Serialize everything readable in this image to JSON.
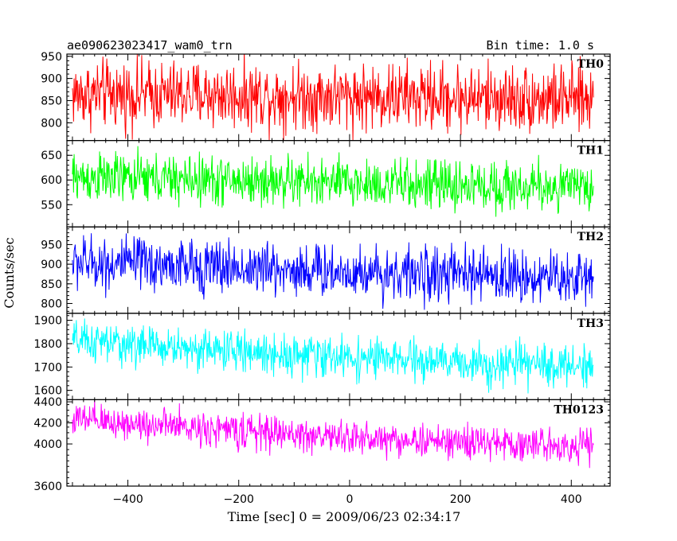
{
  "chart_data": {
    "type": "line",
    "title": "ae090623023417_wam0_trn",
    "subtitle": "Bin time: 1.0 s",
    "xlabel": "Time [sec] 0 = 2009/06/23 02:34:17",
    "ylabel": "Counts/sec",
    "xlim": [
      -510,
      470
    ],
    "x_range": [
      -500,
      440
    ],
    "bin_time_s": 1.0,
    "xticks": [
      -400,
      -200,
      0,
      200,
      400
    ],
    "grid": false,
    "legend": "none (panel labels at top-right of each panel)",
    "panels": [
      {
        "name": "TH0",
        "color": "#ff0000",
        "ylim": [
          760,
          955
        ],
        "yticks": [
          800,
          850,
          900,
          950
        ],
        "values": [
          865,
          864,
          863,
          862,
          861,
          860,
          858,
          856,
          855,
          852
        ],
        "noise": 42
      },
      {
        "name": "TH1",
        "color": "#00ff00",
        "ylim": [
          505,
          680
        ],
        "yticks": [
          550,
          600,
          650
        ],
        "values": [
          605,
          603,
          600,
          598,
          596,
          593,
          590,
          588,
          586,
          585
        ],
        "noise": 28
      },
      {
        "name": "TH2",
        "color": "#0000ff",
        "ylim": [
          775,
          995
        ],
        "yticks": [
          800,
          850,
          900,
          950
        ],
        "values": [
          905,
          900,
          895,
          890,
          885,
          880,
          875,
          872,
          868,
          865
        ],
        "noise": 38
      },
      {
        "name": "TH3",
        "color": "#00ffff",
        "ylim": [
          1560,
          1930
        ],
        "yticks": [
          1600,
          1700,
          1800,
          1900
        ],
        "values": [
          1810,
          1795,
          1780,
          1765,
          1750,
          1738,
          1725,
          1715,
          1708,
          1705
        ],
        "noise": 48
      },
      {
        "name": "TH0123",
        "color": "#ff00ff",
        "ylim": [
          3600,
          4420
        ],
        "yticks": [
          3600,
          4000,
          4200,
          4400
        ],
        "values": [
          4230,
          4195,
          4160,
          4120,
          4085,
          4055,
          4030,
          4010,
          3995,
          3985
        ],
        "noise": 90
      }
    ]
  }
}
